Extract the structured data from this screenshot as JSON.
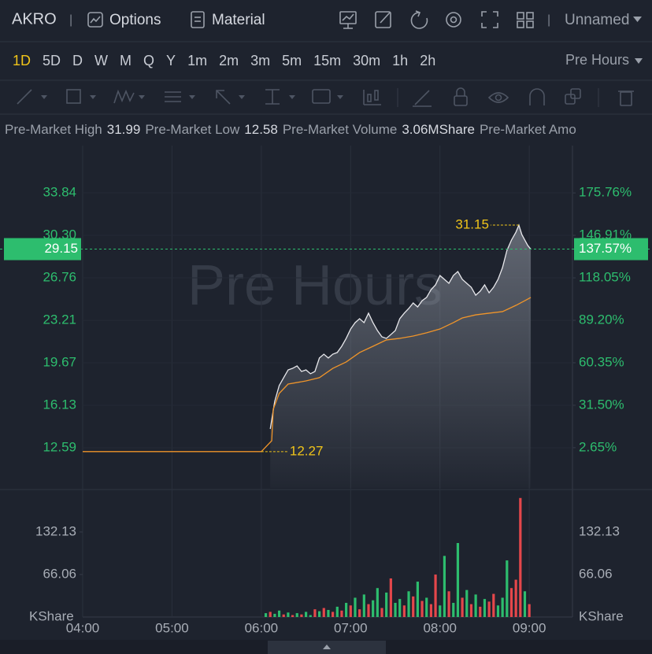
{
  "header": {
    "symbol": "AKRO",
    "separator": "|",
    "options": "Options",
    "material": "Material",
    "separator2": "|",
    "layout": "Unnamed"
  },
  "timeframes": {
    "items": [
      "1D",
      "5D",
      "D",
      "W",
      "M",
      "Q",
      "Y",
      "1m",
      "2m",
      "3m",
      "5m",
      "15m",
      "30m",
      "1h",
      "2h"
    ],
    "active": 0,
    "session": "Pre Hours"
  },
  "info": {
    "items": [
      {
        "label": "Pre-Market High",
        "value": 31.99
      },
      {
        "label": "Pre-Market Low",
        "value": 12.58
      },
      {
        "label": "Pre-Market Volume",
        "value": "3.06MShare"
      },
      {
        "label": "Pre-Market Amo"
      }
    ]
  },
  "chart_data": {
    "type": "line",
    "watermark": "Pre Hours",
    "grid": true,
    "xlim": [
      "04:00",
      "09:29"
    ],
    "xticks": [
      "04:00",
      "05:00",
      "06:00",
      "07:00",
      "08:00",
      "09:00"
    ],
    "ylim": [
      9.24,
      37.78
    ],
    "yticks": [
      33.84,
      {
        "value": 30.3,
        "label": "30.30"
      },
      26.76,
      23.21,
      19.67,
      16.13,
      12.59
    ],
    "y2lim": [
      -24.69,
      207.9
    ],
    "y2ticks": [
      {
        "value": 175.76,
        "label": "175.76%"
      },
      {
        "value": 146.91,
        "label": "146.91%"
      },
      {
        "value": 118.05,
        "label": "118.05%"
      },
      {
        "value": 89.2,
        "label": "89.20%"
      },
      {
        "value": 60.35,
        "label": "60.35%"
      },
      {
        "value": 31.5,
        "label": "31.50%"
      },
      {
        "value": 2.65,
        "label": "2.65%"
      }
    ],
    "series": [
      {
        "color": "#e8e8ec",
        "fill": true,
        "x": [
          "06:06",
          "06:09",
          "06:12",
          "06:15",
          "06:18",
          "06:21",
          "06:24",
          "06:27",
          "06:30",
          "06:33",
          "06:36",
          "06:39",
          "06:42",
          "06:45",
          "06:48",
          "06:51",
          "06:54",
          "06:57",
          "07:00",
          "07:03",
          "07:06",
          "07:09",
          "07:12",
          "07:15",
          "07:18",
          "07:21",
          "07:24",
          "07:27",
          "07:30",
          "07:33",
          "07:36",
          "07:39",
          "07:42",
          "07:45",
          "07:48",
          "07:51",
          "07:54",
          "07:57",
          "08:00",
          "08:03",
          "08:06",
          "08:09",
          "08:12",
          "08:15",
          "08:18",
          "08:21",
          "08:24",
          "08:27",
          "08:30",
          "08:33",
          "08:36",
          "08:39",
          "08:42",
          "08:45",
          "08:48",
          "08:51",
          "08:53",
          "08:55",
          "08:57",
          "08:59",
          "09:01"
        ],
        "values": [
          14.16,
          16.46,
          17.77,
          18.43,
          19.08,
          19.21,
          19.41,
          18.95,
          19.08,
          18.76,
          18.95,
          20.07,
          20.39,
          20.07,
          20.39,
          20.53,
          21.05,
          21.71,
          22.49,
          23.02,
          23.35,
          23.02,
          23.81,
          23.02,
          22.36,
          21.84,
          21.71,
          22.03,
          22.36,
          23.35,
          23.81,
          24.2,
          24.66,
          24.33,
          24.85,
          25.12,
          25.77,
          26.17,
          26.95,
          26.63,
          26.3,
          26.95,
          27.28,
          26.63,
          26.3,
          25.97,
          25.31,
          25.64,
          26.17,
          25.51,
          25.97,
          26.63,
          27.61,
          29.05,
          29.9,
          30.56,
          31.15,
          30.36,
          29.9,
          29.45,
          29.15
        ]
      },
      {
        "color": "#f0952a",
        "fill": false,
        "x": [
          "04:00",
          "06:00",
          "06:07",
          "06:08",
          "06:12",
          "06:18",
          "06:30",
          "06:39",
          "06:48",
          "06:57",
          "07:06",
          "07:15",
          "07:24",
          "07:33",
          "07:42",
          "07:51",
          "08:00",
          "08:09",
          "08:15",
          "08:24",
          "08:33",
          "08:42",
          "08:51",
          "08:57",
          "09:01"
        ],
        "values": [
          12.27,
          12.27,
          13.18,
          15.8,
          17.12,
          17.9,
          18.16,
          18.43,
          19.21,
          19.74,
          20.53,
          21.05,
          21.58,
          21.71,
          21.9,
          22.17,
          22.49,
          23.02,
          23.41,
          23.67,
          23.81,
          23.94,
          24.46,
          24.85,
          25.12
        ]
      }
    ],
    "last_price": {
      "value": 29.15,
      "change_pct": {
        "value": 137.57,
        "label": "137.57%"
      },
      "color": "#2dbd6e"
    },
    "annotations": [
      {
        "x": "08:53",
        "value": 31.15,
        "color": "#f0c419"
      },
      {
        "x": "06:00",
        "value": 12.27,
        "color": "#f0c419"
      }
    ],
    "volume": {
      "type": "bar",
      "unit": "KShare",
      "ylim": [
        0,
        194.5
      ],
      "yticks": [
        66.06,
        132.13
      ],
      "x": [
        "06:03",
        "06:06",
        "06:09",
        "06:12",
        "06:15",
        "06:18",
        "06:21",
        "06:24",
        "06:27",
        "06:30",
        "06:33",
        "06:36",
        "06:39",
        "06:42",
        "06:45",
        "06:48",
        "06:51",
        "06:54",
        "06:57",
        "07:00",
        "07:03",
        "07:06",
        "07:09",
        "07:12",
        "07:15",
        "07:18",
        "07:21",
        "07:24",
        "07:27",
        "07:30",
        "07:33",
        "07:36",
        "07:39",
        "07:42",
        "07:45",
        "07:48",
        "07:51",
        "07:54",
        "07:57",
        "08:00",
        "08:03",
        "08:06",
        "08:09",
        "08:12",
        "08:15",
        "08:18",
        "08:21",
        "08:24",
        "08:27",
        "08:30",
        "08:33",
        "08:36",
        "08:39",
        "08:42",
        "08:45",
        "08:48",
        "08:51",
        "08:54",
        "08:57",
        "09:00"
      ],
      "values": [
        6,
        8,
        5,
        10,
        4,
        7,
        3,
        6,
        4,
        8,
        3,
        12,
        9,
        14,
        11,
        8,
        16,
        10,
        22,
        18,
        30,
        12,
        35,
        20,
        26,
        45,
        14,
        38,
        60,
        22,
        28,
        18,
        40,
        32,
        55,
        25,
        30,
        20,
        66,
        18,
        95,
        40,
        22,
        115,
        30,
        42,
        20,
        35,
        16,
        28,
        24,
        36,
        18,
        30,
        88,
        45,
        58,
        185,
        40,
        20
      ],
      "colors": [
        "#2dbd6e",
        "#e5474b",
        "#2dbd6e",
        "#2dbd6e",
        "#e5474b",
        "#2dbd6e",
        "#e5474b",
        "#2dbd6e",
        "#e5474b",
        "#2dbd6e",
        "#2dbd6e",
        "#e5474b",
        "#2dbd6e",
        "#e5474b",
        "#2dbd6e",
        "#e5474b",
        "#2dbd6e",
        "#e5474b",
        "#2dbd6e",
        "#e5474b",
        "#2dbd6e",
        "#e5474b",
        "#2dbd6e",
        "#e5474b",
        "#2dbd6e",
        "#2dbd6e",
        "#e5474b",
        "#2dbd6e",
        "#e5474b",
        "#2dbd6e",
        "#2dbd6e",
        "#e5474b",
        "#2dbd6e",
        "#e5474b",
        "#2dbd6e",
        "#e5474b",
        "#2dbd6e",
        "#e5474b",
        "#e5474b",
        "#2dbd6e",
        "#2dbd6e",
        "#e5474b",
        "#2dbd6e",
        "#2dbd6e",
        "#e5474b",
        "#2dbd6e",
        "#e5474b",
        "#2dbd6e",
        "#e5474b",
        "#2dbd6e",
        "#e5474b",
        "#e5474b",
        "#2dbd6e",
        "#2dbd6e",
        "#2dbd6e",
        "#e5474b",
        "#e5474b",
        "#e5474b",
        "#2dbd6e",
        "#e5474b"
      ]
    }
  }
}
